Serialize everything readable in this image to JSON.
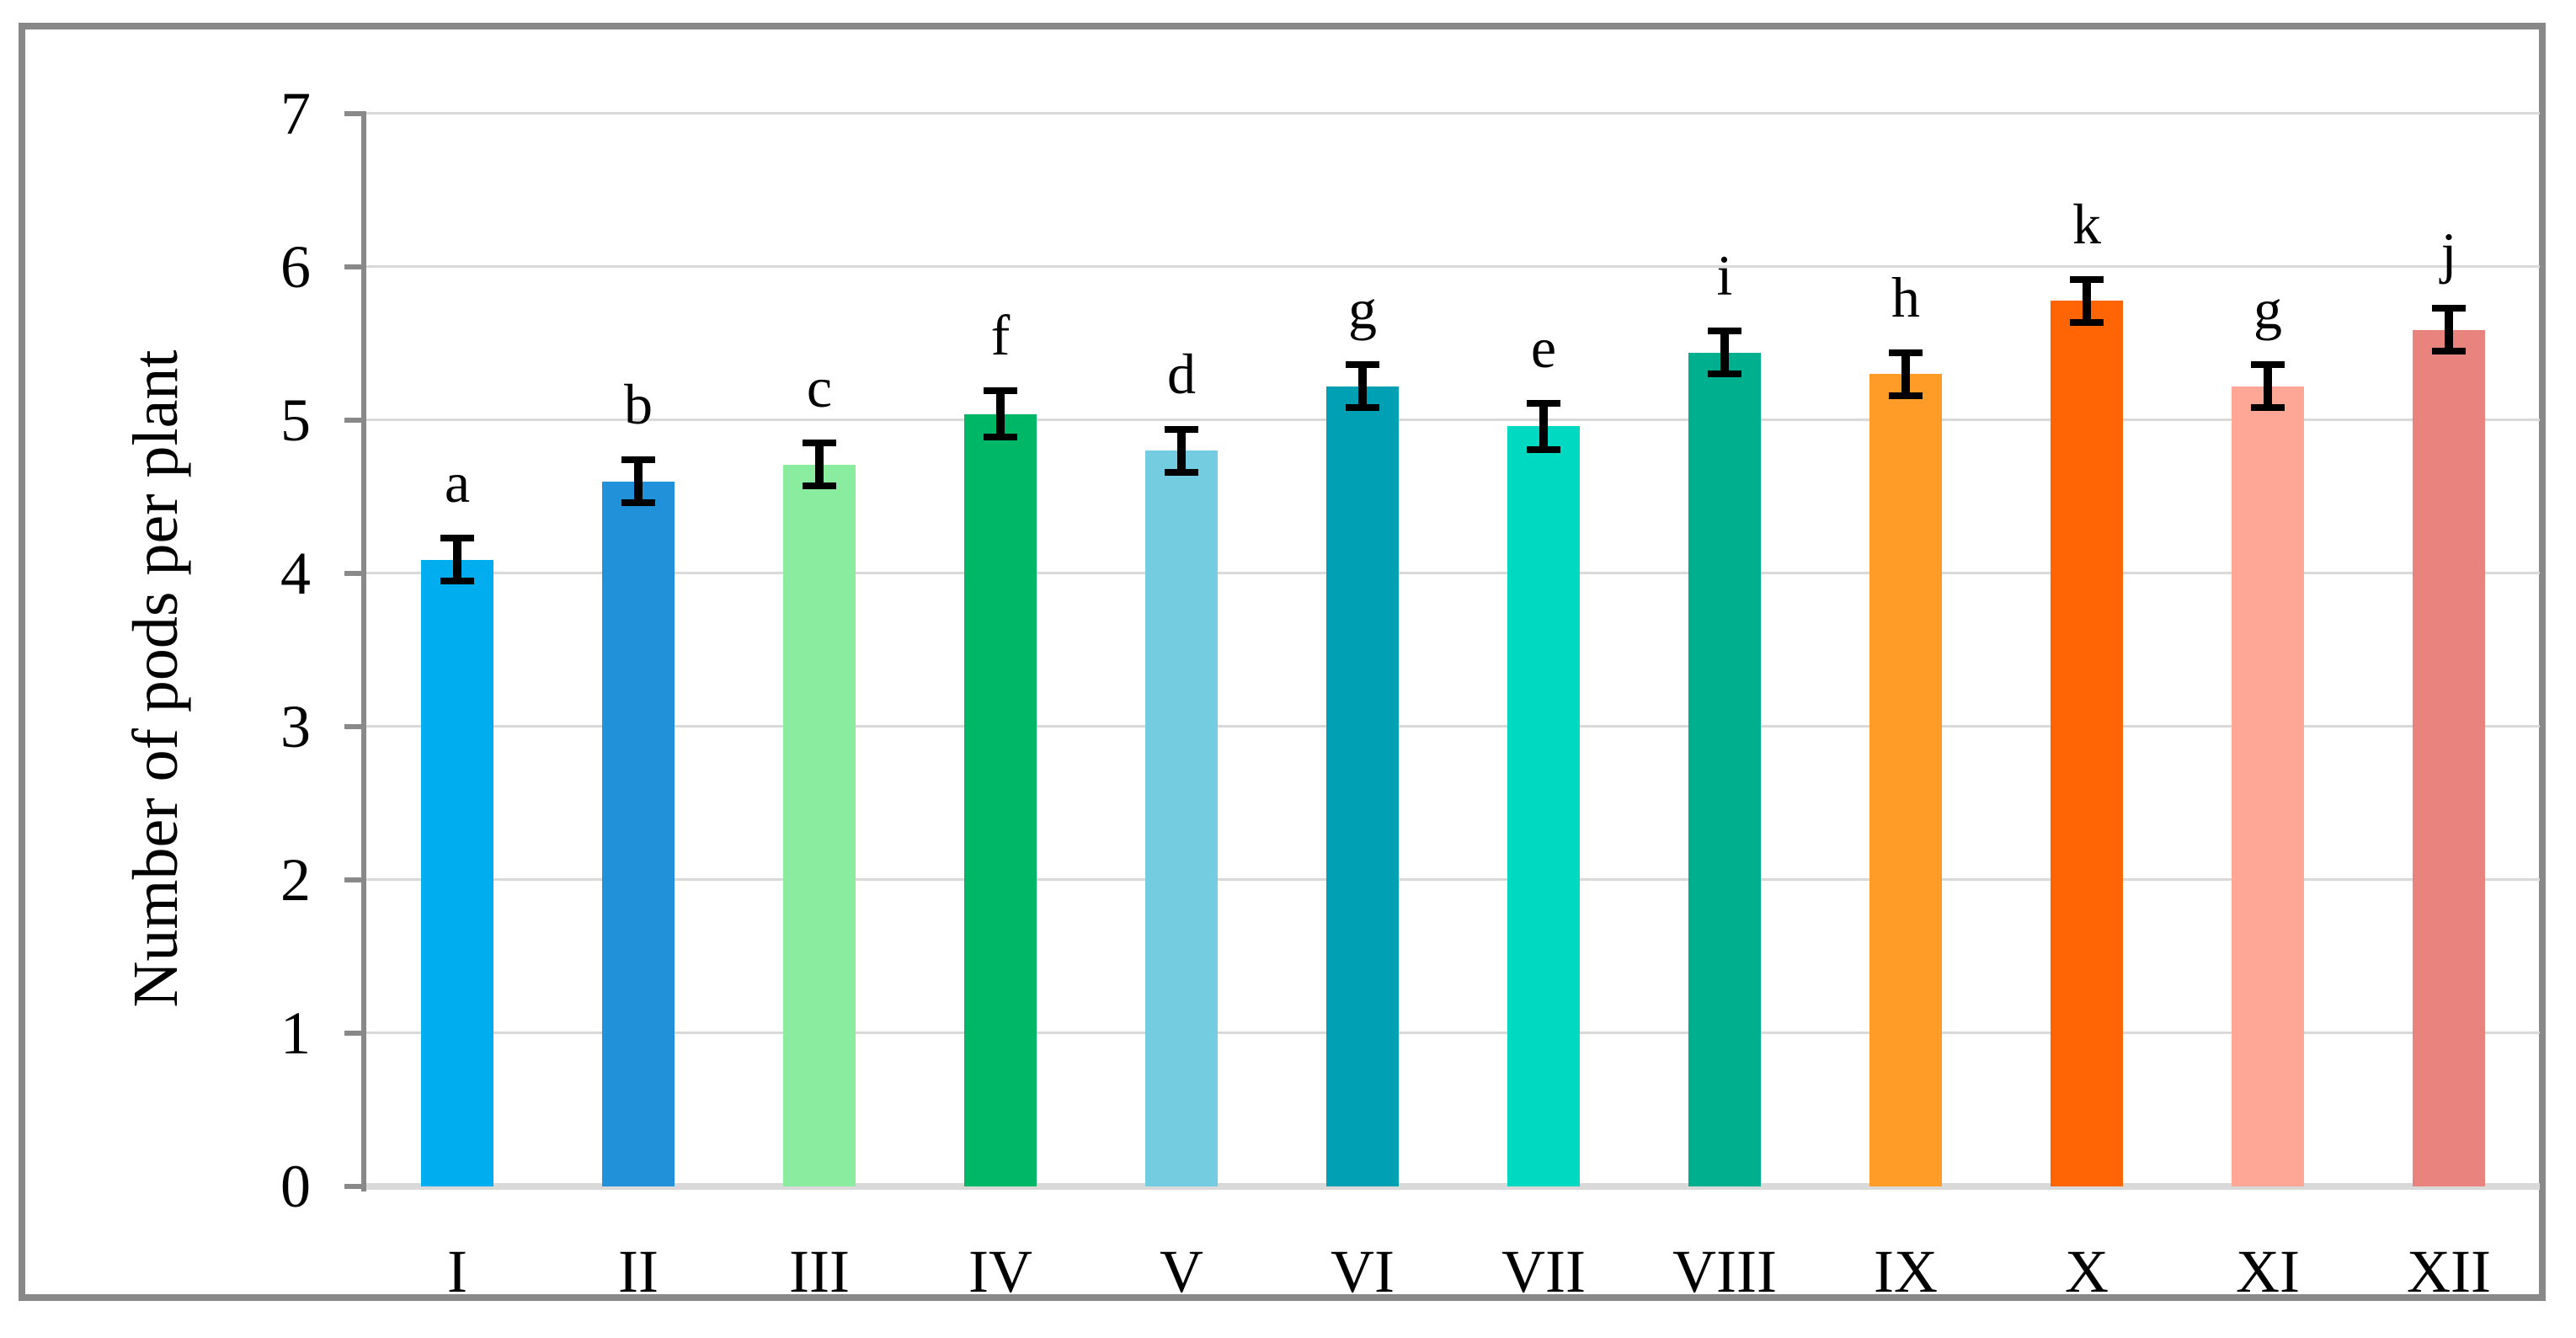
{
  "figure": {
    "background_color": "#FFFFFF",
    "border_color": "#888888"
  },
  "chart_data": {
    "type": "bar",
    "title": "",
    "xlabel": "",
    "ylabel": "Number of pods per plant",
    "ylim": [
      0,
      7
    ],
    "yticks": [
      0,
      1,
      2,
      3,
      4,
      5,
      6,
      7
    ],
    "grid": "horizontal gridlines on, light gray",
    "legend_position": "none",
    "categories": [
      "I",
      "II",
      "III",
      "IV",
      "V",
      "VI",
      "VII",
      "VIII",
      "IX",
      "X",
      "XI",
      "XII"
    ],
    "values": [
      4.09,
      4.6,
      4.71,
      5.04,
      4.8,
      5.22,
      4.96,
      5.44,
      5.3,
      5.78,
      5.22,
      5.59
    ],
    "error_bars": [
      0.14,
      0.14,
      0.14,
      0.15,
      0.14,
      0.14,
      0.15,
      0.14,
      0.14,
      0.14,
      0.14,
      0.14
    ],
    "significance_letters": [
      "a",
      "b",
      "c",
      "f",
      "d",
      "g",
      "e",
      "i",
      "h",
      "k",
      "g",
      "j"
    ],
    "bar_colors": [
      "#00AEEF",
      "#2191D9",
      "#8AEC9F",
      "#00B768",
      "#74CCE0",
      "#00A0B4",
      "#00D9C2",
      "#00AF8E",
      "#FF9C28",
      "#FF6504",
      "#FFA797",
      "#E8837E"
    ],
    "gridline_color": "#D9D9D9",
    "axis_color": "#898989",
    "error_bar_color": "#000000"
  }
}
